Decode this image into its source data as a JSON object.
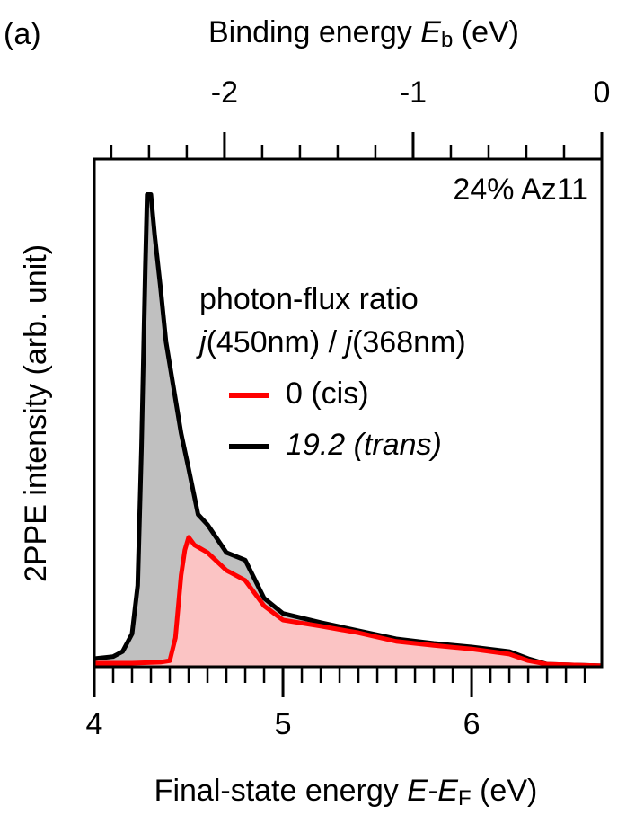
{
  "chart_data": {
    "type": "line",
    "panel_label": "(a)",
    "x2label": [
      "Binding energy ",
      "E",
      "b",
      " (eV)"
    ],
    "xlabel": [
      "Final-state energy ",
      "E",
      "-",
      "E",
      "F",
      " (eV)"
    ],
    "ylabel": "2PPE intensity (arb. unit)",
    "annotation": "24% Az11",
    "legend_title": [
      "photon-flux ratio",
      [
        "j",
        "(450nm) / ",
        "j",
        "(368nm)"
      ]
    ],
    "xlim": [
      4,
      6.69
    ],
    "xticks": [
      4,
      5,
      6
    ],
    "xminorticks": [
      4.1,
      4.2,
      4.3,
      4.4,
      4.5,
      4.6,
      4.7,
      4.8,
      4.9,
      5.1,
      5.2,
      5.3,
      5.4,
      5.5,
      5.6,
      5.7,
      5.8,
      5.9,
      6.1,
      6.2,
      6.3,
      6.4,
      6.5,
      6.6
    ],
    "x2lim": [
      -2.69,
      0
    ],
    "x2ticks": [
      -2,
      -1,
      0
    ],
    "x2minorticks": [
      -2.6,
      -2.4,
      -2.2,
      -1.8,
      -1.6,
      -1.4,
      -1.2,
      -0.8,
      -0.6,
      -0.4,
      -0.2
    ],
    "ylim": [
      0,
      1
    ],
    "series": [
      {
        "name": "19.2 (trans)",
        "font_style": "italic",
        "color": "#000000",
        "fill": "#c0c0c0",
        "x": [
          4.0,
          4.1,
          4.15,
          4.2,
          4.23,
          4.25,
          4.27,
          4.28,
          4.3,
          4.32,
          4.35,
          4.38,
          4.42,
          4.46,
          4.5,
          4.55,
          4.6,
          4.7,
          4.8,
          4.9,
          5.0,
          5.2,
          5.4,
          5.6,
          5.8,
          6.0,
          6.2,
          6.3,
          6.4,
          6.5,
          6.69
        ],
        "values": [
          0.016,
          0.02,
          0.03,
          0.065,
          0.16,
          0.43,
          0.78,
          0.93,
          0.93,
          0.85,
          0.75,
          0.64,
          0.55,
          0.46,
          0.39,
          0.3,
          0.28,
          0.225,
          0.21,
          0.135,
          0.105,
          0.087,
          0.071,
          0.055,
          0.046,
          0.039,
          0.03,
          0.016,
          0.005,
          0.004,
          0.002
        ]
      },
      {
        "name": "0 (cis)",
        "font_style": "normal",
        "color": "#ff0000",
        "fill": "#fbc4c4",
        "x": [
          4.0,
          4.2,
          4.35,
          4.4,
          4.43,
          4.46,
          4.48,
          4.5,
          4.53,
          4.6,
          4.7,
          4.8,
          4.9,
          5.0,
          5.2,
          5.4,
          5.6,
          5.8,
          6.0,
          6.2,
          6.3,
          6.4,
          6.69
        ],
        "values": [
          0.007,
          0.007,
          0.009,
          0.012,
          0.057,
          0.18,
          0.23,
          0.255,
          0.24,
          0.225,
          0.19,
          0.17,
          0.12,
          0.092,
          0.08,
          0.067,
          0.05,
          0.042,
          0.035,
          0.025,
          0.012,
          0.005,
          0.002
        ]
      }
    ]
  }
}
